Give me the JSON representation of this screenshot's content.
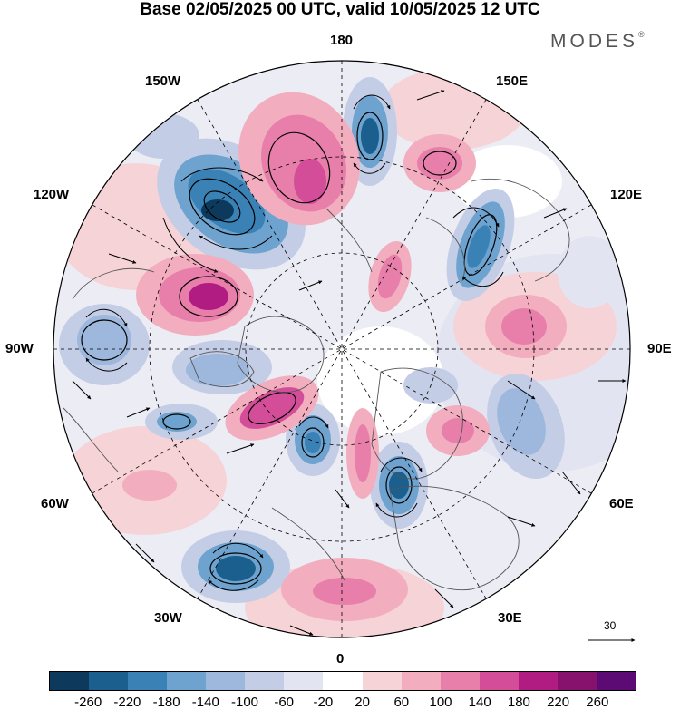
{
  "title": "Base 02/05/2025 00 UTC, valid 10/05/2025 12 UTC",
  "brand": {
    "text": "MODES",
    "mark": "®"
  },
  "longitude_labels": {
    "lon_180": "180",
    "lon_150w": "150W",
    "lon_150e": "150E",
    "lon_120w": "120W",
    "lon_120e": "120E",
    "lon_90w": "90W",
    "lon_90e": "90E",
    "lon_60w": "60W",
    "lon_60e": "60E",
    "lon_30w": "30W",
    "lon_30e": "30E",
    "lon_0": "0"
  },
  "reference_vector": {
    "label": "30"
  },
  "colorbar": {
    "colors": [
      "#0d3a5c",
      "#1a5f8e",
      "#3a82b5",
      "#6ea3cf",
      "#9db8dc",
      "#c4cde6",
      "#e3e4f1",
      "#ffffff",
      "#f6d3d6",
      "#f2adbe",
      "#e77faa",
      "#d44d99",
      "#b01c82",
      "#86126e",
      "#5c0b74"
    ],
    "ticks": [
      "-260",
      "-220",
      "-180",
      "-140",
      "-100",
      "-60",
      "-20",
      "20",
      "60",
      "100",
      "140",
      "180",
      "220",
      "260"
    ]
  }
}
